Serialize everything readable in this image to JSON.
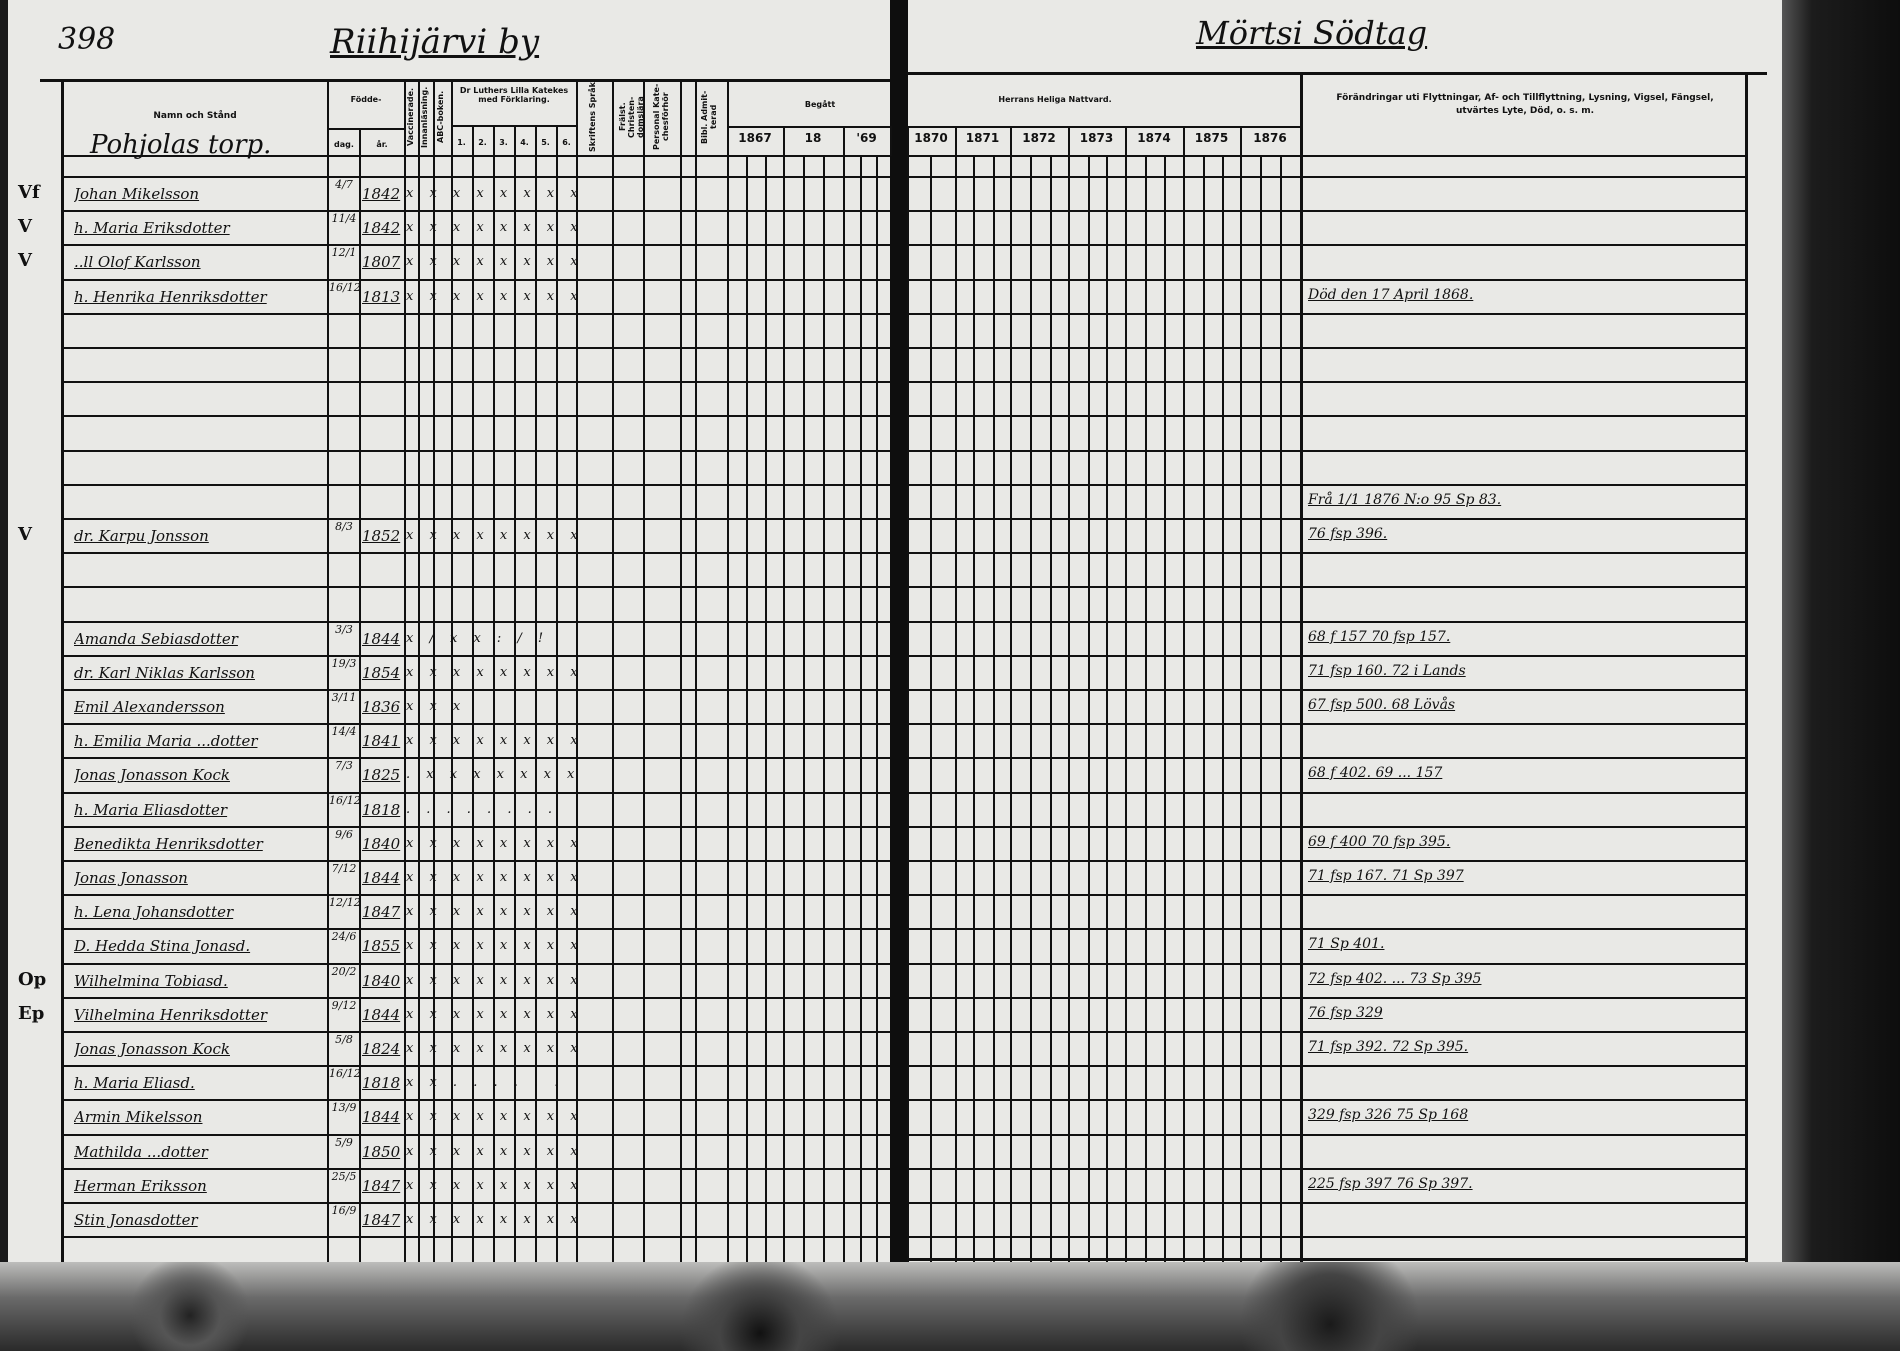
{
  "page_number": "398",
  "village_left": "Riihijärvi by",
  "village_right": "Mörtsi Södtag",
  "header": {
    "name": "Namn och Stånd",
    "born": "Födde-",
    "day": "dag.",
    "year": "år.",
    "vaccinated": "Vaccinerade.",
    "reading": "Innanläsning.",
    "abc": "ABC-boken.",
    "catechism": "Dr Luthers Lilla Katekes med Förklaring.",
    "catechism_parts": [
      "1.",
      "2.",
      "3.",
      "4.",
      "5.",
      "6."
    ],
    "scripture": "Skriftens Språk",
    "doctrine": "Frälst. Christen-domslära",
    "personal": "Personal Kate-chesförhör",
    "admitted": "Bibl. Admit-terad",
    "communion_left": "Begått",
    "communion_right": "Herrans Heliga Nattvard.",
    "years": [
      "1867",
      "18",
      "'69",
      "1870",
      "1871",
      "1872",
      "1873",
      "1874",
      "1875",
      "1876"
    ],
    "remarks": "Förändringar uti Flyttningar, Af- och Tillflyttning, Lysning, Vigsel, Fängsel, utvärtes Lyte, Död, o. s. m."
  },
  "place_name": "Pohjolas torp.",
  "rows": [
    {
      "margin": "Vf",
      "name": "Johan Mikelsson",
      "day": "4/7",
      "year": "1842",
      "marks": "x x x x x x x x x",
      "remark": ""
    },
    {
      "margin": "V",
      "name": "h. Maria Eriksdotter",
      "day": "11/4",
      "year": "1842",
      "marks": "x x x x x x x x x",
      "remark": ""
    },
    {
      "margin": "V",
      "name": "..ll Olof Karlsson",
      "day": "12/1",
      "year": "1807",
      "marks": "x x x x x x x x",
      "remark": ""
    },
    {
      "margin": "",
      "name": "h. Henrika Henriksdotter",
      "day": "16/12",
      "year": "1813",
      "marks": "x x x x x x x x",
      "remark": "Död den 17 April 1868."
    },
    {
      "margin": "",
      "name": "",
      "day": "",
      "year": "",
      "marks": "",
      "remark": ""
    },
    {
      "margin": "",
      "name": "",
      "day": "",
      "year": "",
      "marks": "",
      "remark": ""
    },
    {
      "margin": "",
      "name": "",
      "day": "",
      "year": "",
      "marks": "",
      "remark": ""
    },
    {
      "margin": "",
      "name": "",
      "day": "",
      "year": "",
      "marks": "",
      "remark": ""
    },
    {
      "margin": "",
      "name": "",
      "day": "",
      "year": "",
      "marks": "",
      "remark": ""
    },
    {
      "margin": "",
      "name": "",
      "day": "",
      "year": "",
      "marks": "",
      "remark": "Frå 1/1 1876 N:o 95 Sp 83."
    },
    {
      "margin": "V",
      "name": "dr. Karpu Jonsson",
      "day": "8/3",
      "year": "1852",
      "marks": "x x x x x x x x",
      "remark": "76 fsp 396."
    },
    {
      "margin": "",
      "name": "",
      "day": "",
      "year": "",
      "marks": "",
      "remark": ""
    },
    {
      "margin": "",
      "name": "",
      "day": "",
      "year": "",
      "marks": "",
      "remark": ""
    },
    {
      "margin": "",
      "name": "Amanda Sebiasdotter",
      "day": "3/3",
      "year": "1844",
      "marks": "x / x x : / !",
      "remark": "68 f 157 70 fsp 157."
    },
    {
      "margin": "",
      "name": "dr. Karl Niklas Karlsson",
      "day": "19/3",
      "year": "1854",
      "marks": "x x x x x x x x x",
      "remark": "71 fsp 160. 72 i Lands"
    },
    {
      "margin": "",
      "name": "Emil Alexandersson",
      "day": "3/11",
      "year": "1836",
      "marks": "x x x",
      "remark": "67 fsp 500. 68 Lövås"
    },
    {
      "margin": "",
      "name": "h. Emilia Maria ...dotter",
      "day": "14/4",
      "year": "1841",
      "marks": "x x x x x x x x",
      "remark": ""
    },
    {
      "margin": "",
      "name": "Jonas Jonasson Kock",
      "day": "7/3",
      "year": "1825",
      "marks": ". x x x x x x x x",
      "remark": "68 f 402. 69 ... 157"
    },
    {
      "margin": "",
      "name": "h. Maria Eliasdotter",
      "day": "16/12",
      "year": "1818",
      "marks": ". . . . . . . .",
      "remark": ""
    },
    {
      "margin": "",
      "name": "Benedikta Henriksdotter",
      "day": "9/6",
      "year": "1840",
      "marks": "x x x x x x x x x",
      "remark": "69 f 400 70 fsp 395."
    },
    {
      "margin": "",
      "name": "Jonas Jonasson",
      "day": "7/12",
      "year": "1844",
      "marks": "x x x x x x x x",
      "remark": "71 fsp 167. 71 Sp 397"
    },
    {
      "margin": "",
      "name": "h. Lena Johansdotter",
      "day": "12/12",
      "year": "1847",
      "marks": "x x x x x x x x",
      "remark": ""
    },
    {
      "margin": "",
      "name": "D. Hedda Stina Jonasd.",
      "day": "24/6",
      "year": "1855",
      "marks": "x x x x x x x x",
      "remark": "71 Sp 401."
    },
    {
      "margin": "Op",
      "name": "Wilhelmina Tobiasd.",
      "day": "20/2",
      "year": "1840",
      "marks": "x x x x x x x x x",
      "remark": "72 fsp 402. ... 73 Sp 395"
    },
    {
      "margin": "Ep",
      "name": "Vilhelmina Henriksdotter",
      "day": "9/12",
      "year": "1844",
      "marks": "x x x x x x x x x",
      "remark": "76 fsp 329"
    },
    {
      "margin": "",
      "name": "Jonas Jonasson Kock",
      "day": "5/8",
      "year": "1824",
      "marks": "x x x x x x x x x",
      "remark": "71 fsp 392. 72 Sp 395."
    },
    {
      "margin": "",
      "name": "h. Maria Eliasd.",
      "day": "16/12",
      "year": "1818",
      "marks": "x x . . . . . .",
      "remark": ""
    },
    {
      "margin": "",
      "name": "Armin Mikelsson",
      "day": "13/9",
      "year": "1844",
      "marks": "x x x x x x x x",
      "remark": "329 fsp 326 75 Sp 168"
    },
    {
      "margin": "",
      "name": "Mathilda ...dotter",
      "day": "5/9",
      "year": "1850",
      "marks": "x x x x x x x x x",
      "remark": ""
    },
    {
      "margin": "",
      "name": "Herman Eriksson",
      "day": "25/5",
      "year": "1847",
      "marks": "x x x x x x x x x",
      "remark": "225 fsp 397 76 Sp 397."
    },
    {
      "margin": "",
      "name": "Stin Jonasdotter",
      "day": "16/9",
      "year": "1847",
      "marks": "x x x x x x x x x",
      "remark": ""
    }
  ]
}
